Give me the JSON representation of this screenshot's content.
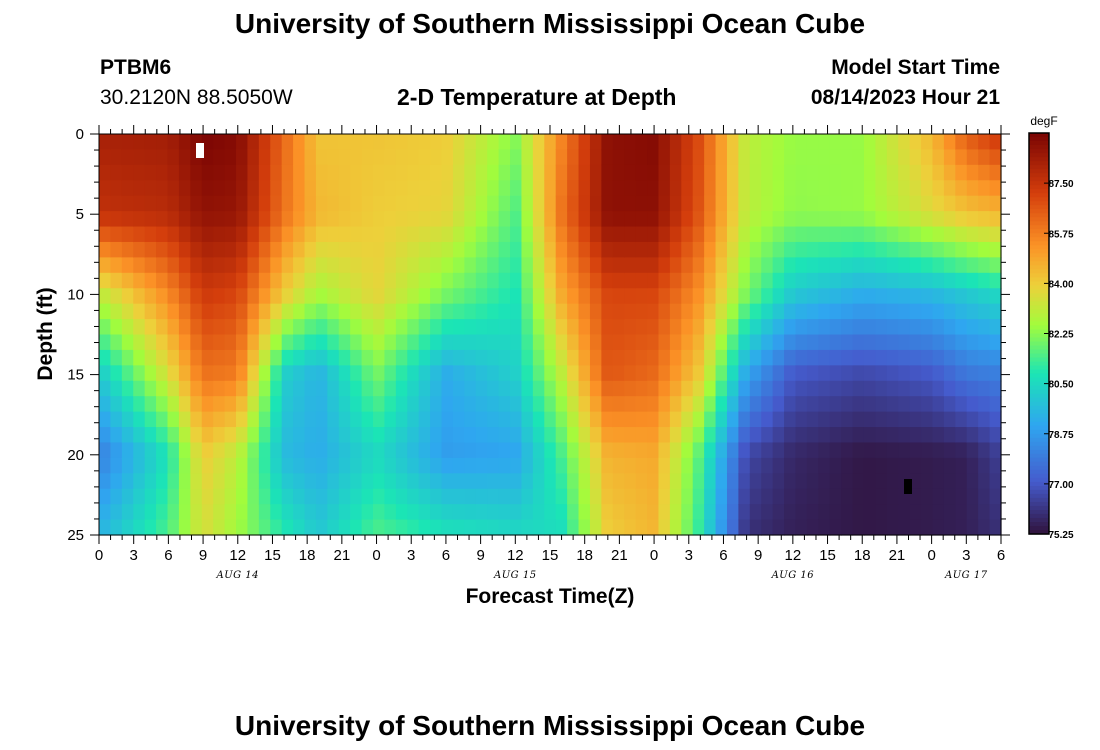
{
  "header": {
    "title": "University of Southern Mississippi Ocean Cube",
    "station": "PTBM6",
    "coords": "30.2120N  88.5050W",
    "subtitle": "2-D Temperature at Depth",
    "model_label": "Model Start Time",
    "model_time": "08/14/2023 Hour 21"
  },
  "footer": {
    "title": "University of Southern Mississippi Ocean Cube"
  },
  "chart_data": {
    "type": "heatmap",
    "title": "2-D Temperature at Depth",
    "xlabel": "Forecast Time(Z)",
    "ylabel": "Depth (ft)",
    "colorbar_unit": "degF",
    "x_range_hours": [
      0,
      78
    ],
    "x_tick_labels": [
      "0",
      "3",
      "6",
      "9",
      "12",
      "15",
      "18",
      "21",
      "0",
      "3",
      "6",
      "9",
      "12",
      "15",
      "18",
      "21",
      "0",
      "3",
      "6",
      "9",
      "12",
      "15",
      "18",
      "21",
      "0",
      "3",
      "6"
    ],
    "date_labels": [
      {
        "label": "AUG 14",
        "hour": 12
      },
      {
        "label": "AUG 15",
        "hour": 36
      },
      {
        "label": "AUG 16",
        "hour": 60
      },
      {
        "label": "AUG 17",
        "hour": 75
      }
    ],
    "y_range_ft": [
      0,
      25
    ],
    "y_ticks": [
      "0",
      "5",
      "10",
      "15",
      "20",
      "25"
    ],
    "colorbar_ticks": [
      "87.50",
      "85.75",
      "84.00",
      "82.25",
      "80.50",
      "78.75",
      "77.00",
      "75.25"
    ],
    "colorbar_range": [
      75.25,
      89.25
    ],
    "depth_levels_ft": [
      0,
      5,
      10,
      15,
      20,
      25
    ],
    "time_hours": [
      0,
      6,
      9,
      12,
      16,
      19,
      24,
      30,
      36,
      40,
      44,
      48,
      52,
      56,
      60,
      66,
      72,
      75,
      78
    ],
    "temperature_degF": [
      [
        88.2,
        88.3,
        89.2,
        89.0,
        86.2,
        84.2,
        84.2,
        84.0,
        82.2,
        85.6,
        88.8,
        89.0,
        86.8,
        83.0,
        82.4,
        82.4,
        84.5,
        86.5,
        87.5
      ],
      [
        87.6,
        87.8,
        88.7,
        88.6,
        86.0,
        84.5,
        84.0,
        83.8,
        81.5,
        86.0,
        88.8,
        88.8,
        86.6,
        83.0,
        82.3,
        82.4,
        83.6,
        84.2,
        84.5
      ],
      [
        83.0,
        85.5,
        87.3,
        87.0,
        84.0,
        82.6,
        83.8,
        82.0,
        80.8,
        84.8,
        87.0,
        87.0,
        85.3,
        82.0,
        80.0,
        79.2,
        79.5,
        80.0,
        80.5
      ],
      [
        80.0,
        83.5,
        86.0,
        85.8,
        80.2,
        79.4,
        82.0,
        79.2,
        80.2,
        83.0,
        86.6,
        86.2,
        84.0,
        79.0,
        77.0,
        76.6,
        77.0,
        77.8,
        78.0
      ],
      [
        78.0,
        80.8,
        84.0,
        83.0,
        79.6,
        79.2,
        80.5,
        78.8,
        79.0,
        81.4,
        84.6,
        84.8,
        81.5,
        76.6,
        75.8,
        75.4,
        75.5,
        75.6,
        76.4
      ],
      [
        79.5,
        81.5,
        83.5,
        82.5,
        81.0,
        80.0,
        81.5,
        80.8,
        80.5,
        80.6,
        84.0,
        84.5,
        81.0,
        76.0,
        75.6,
        75.4,
        75.5,
        75.6,
        76.0
      ]
    ]
  }
}
